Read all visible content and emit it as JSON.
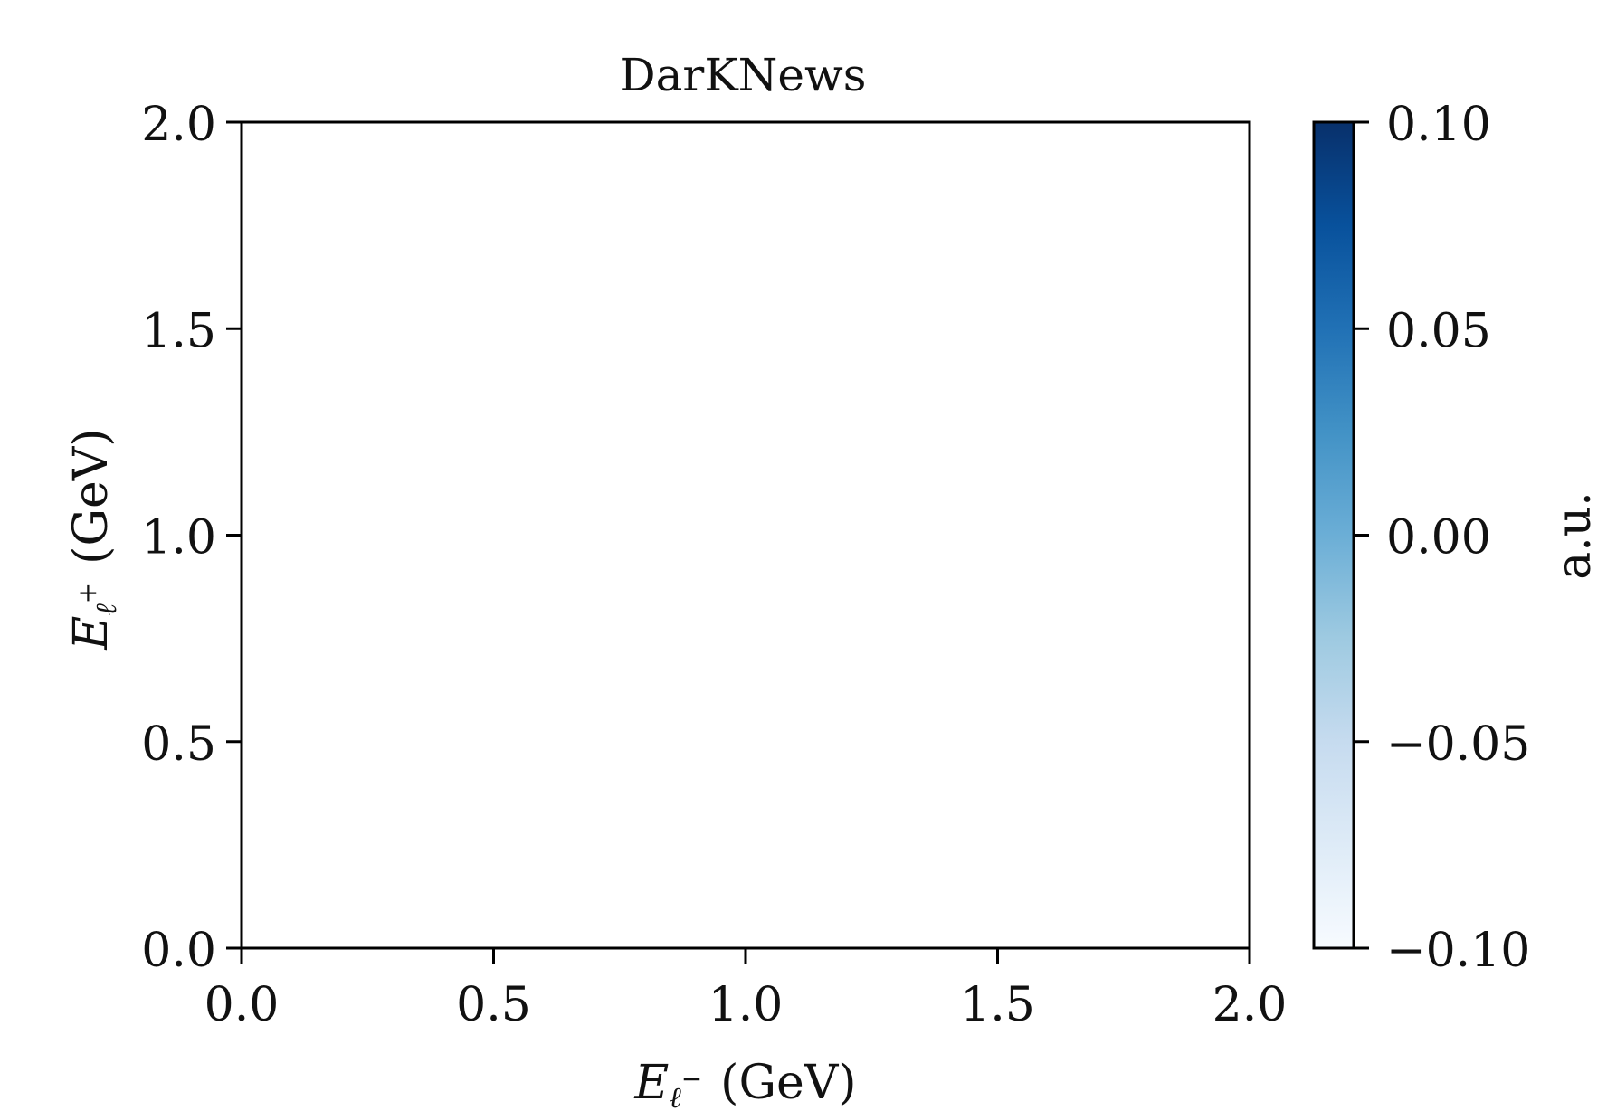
{
  "chart_data": {
    "type": "heatmap",
    "title": "DarKNews",
    "xlabel": {
      "symbol": "E",
      "sub": "ℓ",
      "sup": "−",
      "unit": "(GeV)"
    },
    "ylabel": {
      "symbol": "E",
      "sub": "ℓ",
      "sup": "+",
      "unit": "(GeV)"
    },
    "xlim": [
      0.0,
      2.0
    ],
    "ylim": [
      0.0,
      2.0
    ],
    "xticks": [
      "0.0",
      "0.5",
      "1.0",
      "1.5",
      "2.0"
    ],
    "yticks": [
      "0.0",
      "0.5",
      "1.0",
      "1.5",
      "2.0"
    ],
    "values": [],
    "grid": false,
    "colorbar": {
      "label": "a.u.",
      "colormap": "Blues",
      "range": [
        -0.1,
        0.1
      ],
      "ticks": [
        {
          "value": -0.1,
          "label": "−0.10"
        },
        {
          "value": -0.05,
          "label": "−0.05"
        },
        {
          "value": 0.0,
          "label": "0.00"
        },
        {
          "value": 0.05,
          "label": "0.05"
        },
        {
          "value": 0.1,
          "label": "0.10"
        }
      ],
      "color_low": "#f7fbff",
      "color_high": "#08306b"
    }
  }
}
